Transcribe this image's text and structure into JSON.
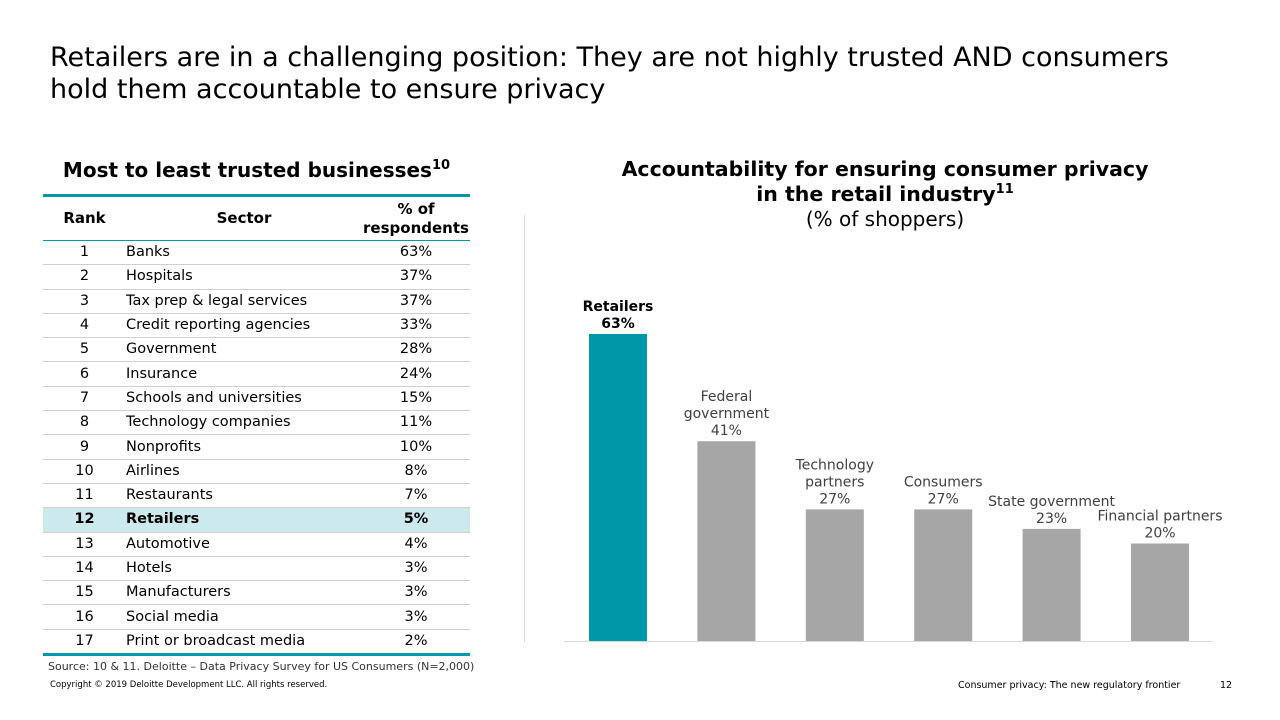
{
  "slide": {
    "title_line1": "Retailers are in a challenging position: They are not highly trusted AND consumers",
    "title_line2": "hold them accountable to ensure privacy"
  },
  "table": {
    "title": "Most to least trusted businesses",
    "title_sup": "10",
    "headers": {
      "rank": "Rank",
      "sector": "Sector",
      "pct_line1": "% of",
      "pct_line2": "respondents"
    },
    "rows": [
      {
        "rank": "1",
        "sector": "Banks",
        "pct": "63%"
      },
      {
        "rank": "2",
        "sector": "Hospitals",
        "pct": "37%"
      },
      {
        "rank": "3",
        "sector": "Tax prep & legal services",
        "pct": "37%"
      },
      {
        "rank": "4",
        "sector": "Credit reporting agencies",
        "pct": "33%"
      },
      {
        "rank": "5",
        "sector": "Government",
        "pct": "28%"
      },
      {
        "rank": "6",
        "sector": "Insurance",
        "pct": "24%"
      },
      {
        "rank": "7",
        "sector": "Schools and universities",
        "pct": "15%"
      },
      {
        "rank": "8",
        "sector": "Technology companies",
        "pct": "11%"
      },
      {
        "rank": "9",
        "sector": "Nonprofits",
        "pct": "10%"
      },
      {
        "rank": "10",
        "sector": "Airlines",
        "pct": "8%"
      },
      {
        "rank": "11",
        "sector": "Restaurants",
        "pct": "7%"
      },
      {
        "rank": "12",
        "sector": "Retailers",
        "pct": "5%"
      },
      {
        "rank": "13",
        "sector": "Automotive",
        "pct": "4%"
      },
      {
        "rank": "14",
        "sector": "Hotels",
        "pct": "3%"
      },
      {
        "rank": "15",
        "sector": "Manufacturers",
        "pct": "3%"
      },
      {
        "rank": "16",
        "sector": "Social media",
        "pct": "3%"
      },
      {
        "rank": "17",
        "sector": "Print or broadcast media",
        "pct": "2%"
      }
    ],
    "highlight_rank": "12",
    "highlight_color": "#cce9ed",
    "accent_color": "#0097a9"
  },
  "chart_data": {
    "type": "bar",
    "title_line1": "Accountability for ensuring consumer privacy",
    "title_line2": "in the retail industry",
    "title_sup": "11",
    "subtitle": "(% of shoppers)",
    "xlabel": "",
    "ylabel": "",
    "ylim": [
      0,
      70
    ],
    "grid": false,
    "categories": [
      [
        "Retailers"
      ],
      [
        "Federal",
        "government"
      ],
      [
        "Technology",
        "partners"
      ],
      [
        "Consumers"
      ],
      [
        "State government"
      ],
      [
        "Financial partners"
      ]
    ],
    "values": [
      63,
      41,
      27,
      27,
      23,
      20
    ],
    "value_labels": [
      "63%",
      "41%",
      "27%",
      "27%",
      "23%",
      "20%"
    ],
    "highlight_index": 0,
    "colors": {
      "highlight": "#0097a9",
      "default": "#a6a6a6",
      "label": "#404040"
    }
  },
  "footer": {
    "source": "Source: 10 & 11.  Deloitte – Data Privacy Survey for US Consumers (N=2,000)",
    "copyright": "Copyright © 2019 Deloitte Development LLC. All rights reserved.",
    "title": "Consumer privacy: The new regulatory frontier",
    "page_number": "12"
  }
}
